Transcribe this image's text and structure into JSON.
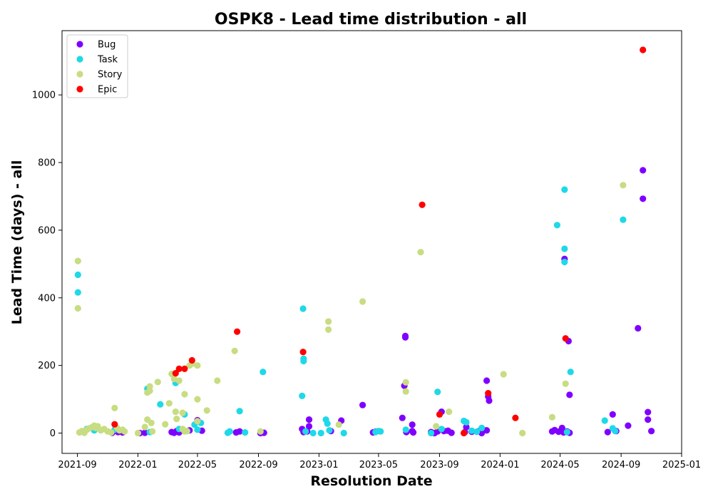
{
  "chart_data": {
    "type": "scatter",
    "title": "OSPK8 - Lead time distribution - all",
    "xlabel": "Resolution Date",
    "ylabel": "Lead Time (days) - all",
    "xlim": [
      "2021-08-01",
      "2025-01-01"
    ],
    "ylim": [
      -60,
      1190
    ],
    "x_ticks": [
      "2021-09",
      "2022-01",
      "2022-05",
      "2022-09",
      "2023-01",
      "2023-05",
      "2023-09",
      "2024-01",
      "2024-05",
      "2024-09",
      "2025-01"
    ],
    "y_ticks": [
      0,
      200,
      400,
      600,
      800,
      1000
    ],
    "grid": false,
    "legend_position": "upper-left",
    "series": [
      {
        "name": "Bug",
        "color": "#8000ff",
        "points": [
          [
            "2021-11-10",
            1
          ],
          [
            "2021-11-22",
            3
          ],
          [
            "2021-12-01",
            2
          ],
          [
            "2022-01-05",
            0
          ],
          [
            "2022-01-15",
            1
          ],
          [
            "2022-03-10",
            3
          ],
          [
            "2022-03-15",
            1
          ],
          [
            "2022-03-20",
            6
          ],
          [
            "2022-03-25",
            2
          ],
          [
            "2022-04-15",
            8
          ],
          [
            "2022-05-01",
            38
          ],
          [
            "2022-05-10",
            7
          ],
          [
            "2022-07-18",
            2
          ],
          [
            "2022-07-25",
            5
          ],
          [
            "2022-09-05",
            0
          ],
          [
            "2022-09-12",
            1
          ],
          [
            "2022-11-28",
            12
          ],
          [
            "2022-12-01",
            3
          ],
          [
            "2022-12-08",
            5
          ],
          [
            "2022-12-12",
            40
          ],
          [
            "2022-12-12",
            20
          ],
          [
            "2023-01-25",
            6
          ],
          [
            "2023-02-15",
            37
          ],
          [
            "2023-03-30",
            83
          ],
          [
            "2023-04-20",
            2
          ],
          [
            "2023-04-25",
            4
          ],
          [
            "2023-06-18",
            45
          ],
          [
            "2023-06-22",
            140
          ],
          [
            "2023-06-24",
            287
          ],
          [
            "2023-06-24",
            283
          ],
          [
            "2023-06-26",
            3
          ],
          [
            "2023-07-08",
            25
          ],
          [
            "2023-07-08",
            6
          ],
          [
            "2023-07-10",
            2
          ],
          [
            "2023-08-15",
            3
          ],
          [
            "2023-08-22",
            0
          ],
          [
            "2023-08-28",
            5
          ],
          [
            "2023-09-05",
            63
          ],
          [
            "2023-09-10",
            6
          ],
          [
            "2023-09-18",
            7
          ],
          [
            "2023-09-25",
            1
          ],
          [
            "2023-10-22",
            3
          ],
          [
            "2023-10-25",
            18
          ],
          [
            "2023-11-05",
            4
          ],
          [
            "2023-11-20",
            6
          ],
          [
            "2023-11-25",
            0
          ],
          [
            "2023-11-28",
            10
          ],
          [
            "2023-12-05",
            155
          ],
          [
            "2023-12-08",
            108
          ],
          [
            "2023-12-10",
            96
          ],
          [
            "2023-12-05",
            8
          ],
          [
            "2024-04-15",
            5
          ],
          [
            "2024-04-20",
            9
          ],
          [
            "2024-04-28",
            4
          ],
          [
            "2024-05-05",
            15
          ],
          [
            "2024-05-08",
            2
          ],
          [
            "2024-05-10",
            515
          ],
          [
            "2024-05-15",
            5
          ],
          [
            "2024-05-18",
            272
          ],
          [
            "2024-05-20",
            113
          ],
          [
            "2024-05-20",
            1
          ],
          [
            "2024-08-05",
            3
          ],
          [
            "2024-08-15",
            55
          ],
          [
            "2024-08-22",
            6
          ],
          [
            "2024-09-15",
            22
          ],
          [
            "2024-10-05",
            310
          ],
          [
            "2024-10-15",
            777
          ],
          [
            "2024-10-15",
            693
          ],
          [
            "2024-10-25",
            62
          ],
          [
            "2024-10-25",
            40
          ],
          [
            "2024-11-01",
            6
          ]
        ]
      },
      {
        "name": "Task",
        "color": "#1fd8e8",
        "points": [
          [
            "2021-09-02",
            468
          ],
          [
            "2021-09-02",
            416
          ],
          [
            "2021-09-10",
            5
          ],
          [
            "2021-09-20",
            12
          ],
          [
            "2021-10-05",
            8
          ],
          [
            "2021-11-15",
            10
          ],
          [
            "2022-01-20",
            131
          ],
          [
            "2022-01-25",
            3
          ],
          [
            "2022-02-15",
            85
          ],
          [
            "2022-03-18",
            148
          ],
          [
            "2022-03-25",
            12
          ],
          [
            "2022-04-05",
            55
          ],
          [
            "2022-04-10",
            6
          ],
          [
            "2022-04-25",
            25
          ],
          [
            "2022-05-01",
            10
          ],
          [
            "2022-05-08",
            30
          ],
          [
            "2022-07-01",
            1
          ],
          [
            "2022-07-05",
            5
          ],
          [
            "2022-07-25",
            65
          ],
          [
            "2022-08-05",
            2
          ],
          [
            "2022-09-10",
            181
          ],
          [
            "2022-11-28",
            110
          ],
          [
            "2022-11-30",
            368
          ],
          [
            "2022-12-01",
            220
          ],
          [
            "2022-12-01",
            213
          ],
          [
            "2022-12-05",
            5
          ],
          [
            "2022-12-20",
            0
          ],
          [
            "2023-01-05",
            0
          ],
          [
            "2023-01-15",
            40
          ],
          [
            "2023-01-18",
            28
          ],
          [
            "2023-01-22",
            8
          ],
          [
            "2023-02-20",
            0
          ],
          [
            "2023-04-25",
            3
          ],
          [
            "2023-05-01",
            6
          ],
          [
            "2023-05-05",
            5
          ],
          [
            "2023-06-25",
            10
          ],
          [
            "2023-08-15",
            0
          ],
          [
            "2023-08-28",
            122
          ],
          [
            "2023-09-05",
            12
          ],
          [
            "2023-10-20",
            36
          ],
          [
            "2023-10-25",
            32
          ],
          [
            "2023-11-05",
            7
          ],
          [
            "2023-11-15",
            4
          ],
          [
            "2023-11-25",
            15
          ],
          [
            "2024-04-25",
            615
          ],
          [
            "2024-05-10",
            720
          ],
          [
            "2024-05-10",
            545
          ],
          [
            "2024-05-10",
            506
          ],
          [
            "2024-05-22",
            181
          ],
          [
            "2024-05-15",
            3
          ],
          [
            "2024-07-30",
            37
          ],
          [
            "2024-08-15",
            14
          ],
          [
            "2024-08-20",
            6
          ],
          [
            "2024-09-05",
            631
          ]
        ]
      },
      {
        "name": "Story",
        "color": "#c8dc82",
        "points": [
          [
            "2021-09-02",
            509
          ],
          [
            "2021-09-02",
            369
          ],
          [
            "2021-09-05",
            2
          ],
          [
            "2021-09-10",
            6
          ],
          [
            "2021-09-15",
            1
          ],
          [
            "2021-09-20",
            10
          ],
          [
            "2021-09-25",
            14
          ],
          [
            "2021-10-01",
            18
          ],
          [
            "2021-10-05",
            22
          ],
          [
            "2021-10-08",
            15
          ],
          [
            "2021-10-12",
            20
          ],
          [
            "2021-10-18",
            8
          ],
          [
            "2021-10-25",
            12
          ],
          [
            "2021-11-01",
            5
          ],
          [
            "2021-11-08",
            2
          ],
          [
            "2021-11-15",
            74
          ],
          [
            "2021-11-20",
            15
          ],
          [
            "2021-11-25",
            8
          ],
          [
            "2021-12-01",
            10
          ],
          [
            "2021-12-05",
            5
          ],
          [
            "2022-01-01",
            0
          ],
          [
            "2022-01-15",
            18
          ],
          [
            "2022-01-20",
            120
          ],
          [
            "2022-01-20",
            40
          ],
          [
            "2022-01-25",
            138
          ],
          [
            "2022-01-25",
            125
          ],
          [
            "2022-01-28",
            30
          ],
          [
            "2022-01-30",
            5
          ],
          [
            "2022-02-10",
            151
          ],
          [
            "2022-02-25",
            26
          ],
          [
            "2022-03-05",
            88
          ],
          [
            "2022-03-10",
            175
          ],
          [
            "2022-03-15",
            160
          ],
          [
            "2022-03-18",
            63
          ],
          [
            "2022-03-20",
            42
          ],
          [
            "2022-03-25",
            155
          ],
          [
            "2022-04-01",
            60
          ],
          [
            "2022-04-05",
            115
          ],
          [
            "2022-04-01",
            12
          ],
          [
            "2022-04-05",
            5
          ],
          [
            "2022-04-10",
            6
          ],
          [
            "2022-04-15",
            200
          ],
          [
            "2022-04-20",
            205
          ],
          [
            "2022-05-01",
            200
          ],
          [
            "2022-05-01",
            100
          ],
          [
            "2022-05-01",
            35
          ],
          [
            "2022-05-20",
            67
          ],
          [
            "2022-06-10",
            155
          ],
          [
            "2022-07-15",
            243
          ],
          [
            "2022-09-05",
            5
          ],
          [
            "2023-01-20",
            330
          ],
          [
            "2023-01-20",
            306
          ],
          [
            "2023-02-10",
            25
          ],
          [
            "2023-03-30",
            389
          ],
          [
            "2023-06-25",
            150
          ],
          [
            "2023-06-25",
            123
          ],
          [
            "2023-07-25",
            535
          ],
          [
            "2023-08-25",
            20
          ],
          [
            "2023-09-20",
            63
          ],
          [
            "2023-10-20",
            0
          ],
          [
            "2024-01-08",
            174
          ],
          [
            "2024-02-15",
            0
          ],
          [
            "2024-04-15",
            47
          ],
          [
            "2024-05-12",
            146
          ],
          [
            "2024-09-05",
            733
          ]
        ]
      },
      {
        "name": "Epic",
        "color": "#ff0000",
        "points": [
          [
            "2021-11-15",
            26
          ],
          [
            "2022-03-18",
            177
          ],
          [
            "2022-03-25",
            190
          ],
          [
            "2022-04-05",
            190
          ],
          [
            "2022-04-20",
            215
          ],
          [
            "2022-07-20",
            300
          ],
          [
            "2022-11-30",
            240
          ],
          [
            "2023-07-28",
            675
          ],
          [
            "2023-09-01",
            55
          ],
          [
            "2023-10-20",
            0
          ],
          [
            "2023-12-08",
            118
          ],
          [
            "2024-02-01",
            45
          ],
          [
            "2024-05-12",
            280
          ],
          [
            "2024-10-15",
            1133
          ]
        ]
      }
    ]
  }
}
